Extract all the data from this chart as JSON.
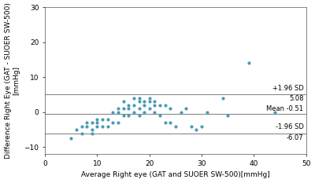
{
  "xlabel": "Average Right eye (GAT and SUOER SW-500)[mmHg]",
  "ylabel": "Difference Right Eye (GAT - SUOER SW-500)\n[mmHg]",
  "xlim": [
    0,
    50
  ],
  "ylim": [
    -12,
    30
  ],
  "xticks": [
    0,
    10,
    20,
    30,
    40,
    50
  ],
  "yticks": [
    -10,
    0,
    10,
    20,
    30
  ],
  "mean": -0.51,
  "upper_loa": 5.08,
  "lower_loa": -6.07,
  "upper_sd_label": "+1.96 SD",
  "upper_val_label": "5.08",
  "mean_label": "Mean -0.51",
  "lower_sd_label": "-1.96 SD",
  "lower_val_label": "-6.07",
  "dot_color": "#4a9bb5",
  "line_color": "#888888",
  "scatter_x": [
    5,
    6,
    7,
    7,
    8,
    8,
    9,
    9,
    9,
    10,
    10,
    10,
    11,
    11,
    12,
    12,
    13,
    13,
    14,
    14,
    14,
    15,
    15,
    15,
    16,
    16,
    16,
    17,
    17,
    17,
    18,
    18,
    18,
    18,
    19,
    19,
    19,
    20,
    20,
    20,
    21,
    21,
    21,
    22,
    22,
    23,
    23,
    24,
    24,
    25,
    26,
    27,
    28,
    29,
    30,
    31,
    34,
    35,
    39,
    44
  ],
  "scatter_y": [
    -7.5,
    -5,
    -4,
    -6,
    -4,
    -3,
    -3,
    -5,
    -6,
    -3,
    -2,
    -4,
    -2,
    -4,
    -2,
    -4,
    0,
    -3,
    1,
    0,
    -3,
    3,
    1,
    -1,
    2,
    1,
    -1,
    4,
    2,
    0,
    4,
    3,
    1,
    -1,
    3,
    2,
    0,
    4,
    3,
    1,
    3,
    2,
    0,
    2,
    -1,
    2,
    -3,
    1,
    -3,
    -4,
    0,
    1,
    -4,
    -5,
    -4,
    0,
    4,
    -1,
    14,
    0
  ],
  "bg_color": "#ffffff",
  "label_fontsize": 6.5,
  "tick_fontsize": 6.5,
  "annot_fontsize": 6.0
}
